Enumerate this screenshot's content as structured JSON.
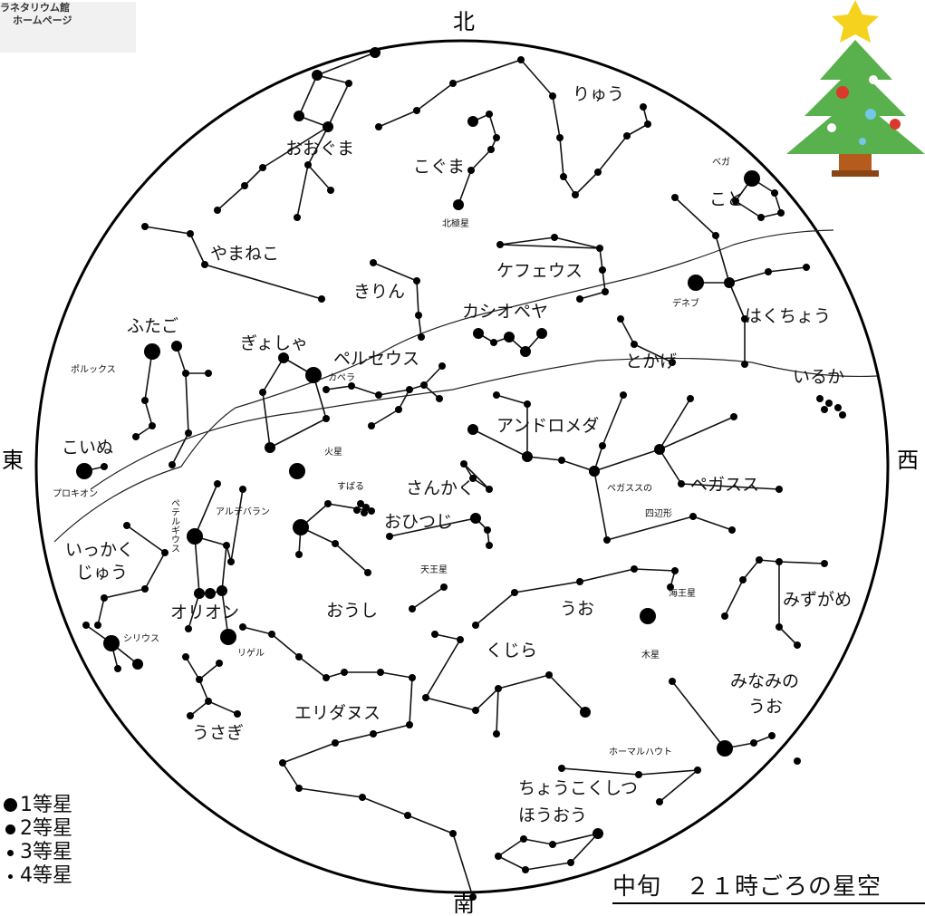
{
  "logo": {
    "line1": "ラネタリウム館",
    "line2": "ホームページ"
  },
  "directions": {
    "north": "北",
    "south": "南",
    "east": "東",
    "west": "西"
  },
  "caption": "中旬　２１時ごろの星空",
  "legend": [
    {
      "label": "1等星",
      "magnitude": 1
    },
    {
      "label": "2等星",
      "magnitude": 2
    },
    {
      "label": "3等星",
      "magnitude": 3
    },
    {
      "label": "4等星",
      "magnitude": 4
    }
  ],
  "constellations": [
    "りゅう",
    "おおぐま",
    "こぐま",
    "こと",
    "やまねこ",
    "ケフェウス",
    "きりん",
    "はくちょう",
    "カシオペヤ",
    "ふたご",
    "ぎょしゃ",
    "ペルセウス",
    "とかげ",
    "いるか",
    "アンドロメダ",
    "こいぬ",
    "ペガスス",
    "さんかく",
    "おひつじ",
    "いっかく",
    "じゅう",
    "うお",
    "オリオン",
    "おうし",
    "みずがめ",
    "くじら",
    "みなみの",
    "うお",
    "エリダヌス",
    "うさぎ",
    "ちょうこくしつ",
    "ほうおう"
  ],
  "stars": [
    "ベガ",
    "北極星",
    "デネブ",
    "ポルックス",
    "カペラ",
    "プロキオン",
    "ペテルギウス",
    "アルデバラン",
    "すばる",
    "シリウス",
    "リゲル",
    "ホーマルハウト"
  ],
  "planets": [
    "火星",
    "天王星",
    "海王星",
    "木星"
  ],
  "notes": [
    "ペガススの",
    "四辺形"
  ]
}
